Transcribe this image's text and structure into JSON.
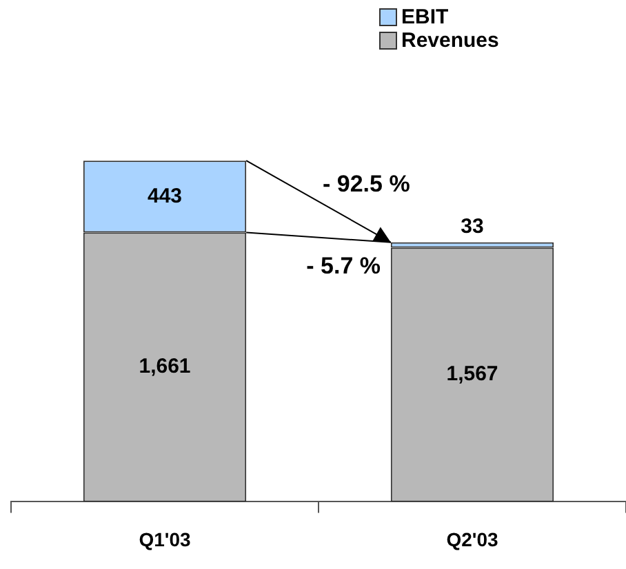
{
  "chart_data": {
    "type": "bar",
    "stacked": true,
    "categories": [
      "Q1'03",
      "Q2'03"
    ],
    "series": [
      {
        "name": "Revenues",
        "color": "#b8b8b8",
        "values": [
          1661,
          1567
        ],
        "value_labels": [
          "1,661",
          "1,567"
        ]
      },
      {
        "name": "EBIT",
        "color": "#a9d3ff",
        "values": [
          443,
          33
        ],
        "value_labels": [
          "443",
          "33"
        ]
      }
    ],
    "annotations": [
      "- 92.5 %",
      "- 5.7 %"
    ],
    "legend": "top right",
    "grid": false
  }
}
